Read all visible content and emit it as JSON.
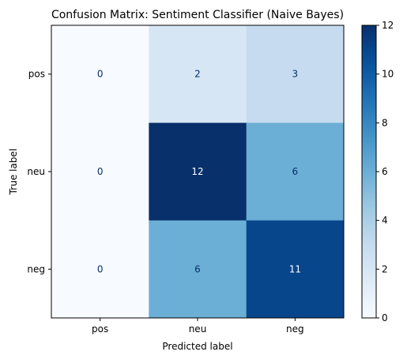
{
  "chart_data": {
    "type": "heatmap",
    "title": "Confusion Matrix: Sentiment Classifier (Naive Bayes)",
    "xlabel": "Predicted label",
    "ylabel": "True label",
    "x_categories": [
      "pos",
      "neu",
      "neg"
    ],
    "y_categories": [
      "pos",
      "neu",
      "neg"
    ],
    "values": [
      [
        0,
        2,
        3
      ],
      [
        0,
        12,
        6
      ],
      [
        0,
        6,
        11
      ]
    ],
    "colormap": "Blues",
    "colormap_colors": {
      "low": "#f7fbff",
      "high": "#08306b"
    },
    "colorbar": {
      "range": [
        0,
        12
      ],
      "ticks": [
        0,
        2,
        4,
        6,
        8,
        10,
        12
      ]
    },
    "text_colors": {
      "dark_cell_text": "#ffffff",
      "light_cell_text": "#08306b"
    }
  }
}
